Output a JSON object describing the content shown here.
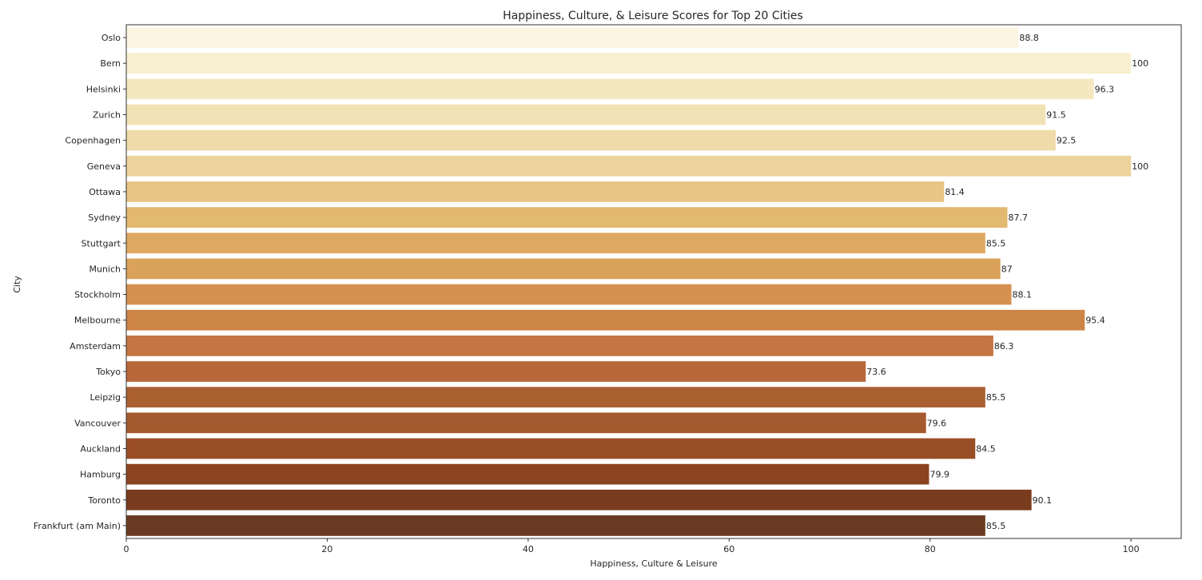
{
  "chart_data": {
    "type": "bar",
    "orientation": "horizontal",
    "title": "Happiness, Culture, & Leisure Scores for Top 20 Cities",
    "xlabel": "Happiness, Culture & Leisure",
    "ylabel": "City",
    "xlim": [
      0,
      105
    ],
    "xticks": [
      0,
      20,
      40,
      60,
      80,
      100
    ],
    "grid": false,
    "categories": [
      "Oslo",
      "Bern",
      "Helsinki",
      "Zurich",
      "Copenhagen",
      "Geneva",
      "Ottawa",
      "Sydney",
      "Stuttgart",
      "Munich",
      "Stockholm",
      "Melbourne",
      "Amsterdam",
      "Tokyo",
      "Leipzig",
      "Vancouver",
      "Auckland",
      "Hamburg",
      "Toronto",
      "Frankfurt (am Main)"
    ],
    "values": [
      88.8,
      100,
      96.3,
      91.5,
      92.5,
      100,
      81.4,
      87.7,
      85.5,
      87,
      88.1,
      95.4,
      86.3,
      73.6,
      85.5,
      79.6,
      84.5,
      79.9,
      90.1,
      85.5
    ],
    "value_labels": [
      "88.8",
      "100",
      "96.3",
      "91.5",
      "92.5",
      "100",
      "81.4",
      "87.7",
      "85.5",
      "87",
      "88.1",
      "95.4",
      "86.3",
      "73.6",
      "85.5",
      "79.6",
      "84.5",
      "79.9",
      "90.1",
      "85.5"
    ],
    "colors": [
      "#fbf5e1",
      "#f7efcf",
      "#f4e8c0",
      "#f1e2b5",
      "#efdba9",
      "#ecd29b",
      "#e7c583",
      "#e3b86f",
      "#dfa862",
      "#dba259",
      "#d4914f",
      "#cd8447",
      "#c57542",
      "#b8673a",
      "#ab6032",
      "#a45a2e",
      "#9a4e26",
      "#8b4420",
      "#7a3b1e",
      "#6b3a22"
    ]
  }
}
